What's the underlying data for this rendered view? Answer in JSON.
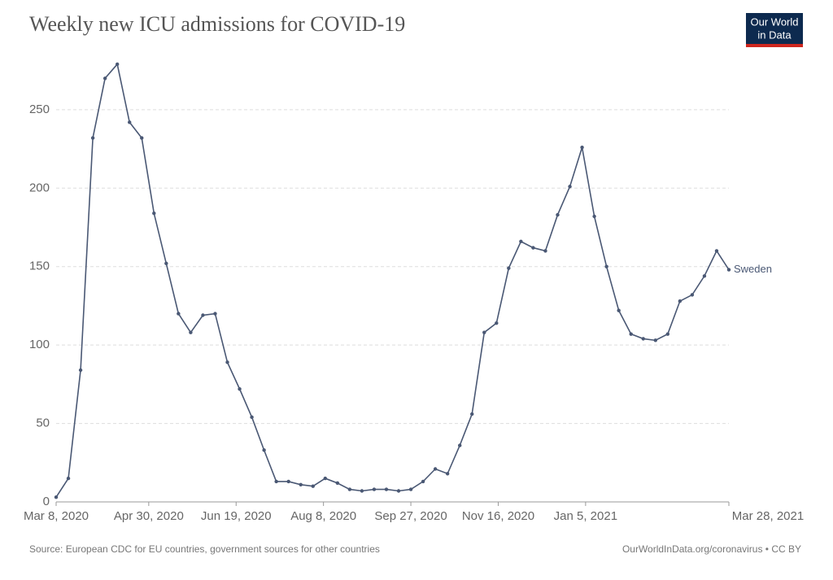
{
  "logo": [
    "Our World",
    "in Data"
  ],
  "chart_data": {
    "type": "line",
    "title": "Weekly new ICU admissions for COVID-19",
    "source": "Source: European CDC for EU countries, government sources for other countries",
    "credit": "OurWorldInData.org/coronavirus • CC BY",
    "x": [
      "2020-03-08",
      "2020-03-15",
      "2020-03-22",
      "2020-03-29",
      "2020-04-05",
      "2020-04-12",
      "2020-04-19",
      "2020-04-26",
      "2020-05-03",
      "2020-05-10",
      "2020-05-17",
      "2020-05-24",
      "2020-05-31",
      "2020-06-07",
      "2020-06-14",
      "2020-06-21",
      "2020-06-28",
      "2020-07-05",
      "2020-07-12",
      "2020-07-19",
      "2020-07-26",
      "2020-08-02",
      "2020-08-09",
      "2020-08-16",
      "2020-08-23",
      "2020-08-30",
      "2020-09-06",
      "2020-09-13",
      "2020-09-20",
      "2020-09-27",
      "2020-10-04",
      "2020-10-11",
      "2020-10-18",
      "2020-10-25",
      "2020-11-01",
      "2020-11-08",
      "2020-11-15",
      "2020-11-22",
      "2020-11-29",
      "2020-12-06",
      "2020-12-13",
      "2020-12-20",
      "2020-12-27",
      "2021-01-03",
      "2021-01-10",
      "2021-01-17",
      "2021-01-24",
      "2021-01-31",
      "2021-02-07",
      "2021-02-14",
      "2021-02-21",
      "2021-02-28",
      "2021-03-07",
      "2021-03-14",
      "2021-03-21",
      "2021-03-28"
    ],
    "series": [
      {
        "name": "Sweden",
        "color": "#4a5874",
        "values": [
          3,
          15,
          84,
          232,
          270,
          279,
          242,
          232,
          184,
          152,
          120,
          108,
          119,
          120,
          89,
          72,
          54,
          33,
          13,
          13,
          11,
          10,
          15,
          12,
          8,
          7,
          8,
          8,
          7,
          8,
          13,
          21,
          18,
          36,
          56,
          108,
          114,
          149,
          166,
          162,
          160,
          183,
          201,
          226,
          182,
          150,
          122,
          107,
          104,
          103,
          107,
          128,
          132,
          144,
          160,
          148
        ]
      }
    ],
    "xlim": [
      "2020-03-08",
      "2021-03-28"
    ],
    "xticks": [
      {
        "value": "2020-03-08",
        "label": "Mar 8, 2020"
      },
      {
        "value": "2020-04-30",
        "label": "Apr 30, 2020"
      },
      {
        "value": "2020-06-19",
        "label": "Jun 19, 2020"
      },
      {
        "value": "2020-08-08",
        "label": "Aug 8, 2020"
      },
      {
        "value": "2020-09-27",
        "label": "Sep 27, 2020"
      },
      {
        "value": "2020-11-16",
        "label": "Nov 16, 2020"
      },
      {
        "value": "2021-01-05",
        "label": "Jan 5, 2021"
      },
      {
        "value": "2021-03-28",
        "label": "Mar 28, 2021"
      }
    ],
    "ylim": [
      0,
      280
    ],
    "yticks": [
      0,
      50,
      100,
      150,
      200,
      250
    ],
    "grid": true
  }
}
